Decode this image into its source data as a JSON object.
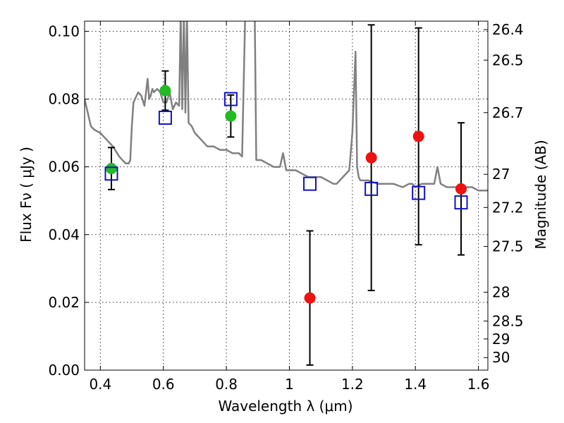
{
  "chart_data": {
    "type": "scatter",
    "title": "",
    "xlabel": "Wavelength  λ (μm)",
    "ylabel": "Flux  Fν  ( μJy )",
    "y2label": "Magnitude (AB)",
    "xlim": [
      0.35,
      1.63
    ],
    "ylim": [
      0.0,
      0.103
    ],
    "grid": true,
    "x_ticks": [
      {
        "value": 0.4,
        "label": "0.4"
      },
      {
        "value": 0.6,
        "label": "0.6"
      },
      {
        "value": 0.8,
        "label": "0.8"
      },
      {
        "value": 1.0,
        "label": "1"
      },
      {
        "value": 1.2,
        "label": "1.2"
      },
      {
        "value": 1.4,
        "label": "1.4"
      },
      {
        "value": 1.6,
        "label": "1.6"
      }
    ],
    "y_ticks": [
      {
        "value": 0.0,
        "label": "0.00"
      },
      {
        "value": 0.02,
        "label": "0.02"
      },
      {
        "value": 0.04,
        "label": "0.04"
      },
      {
        "value": 0.06,
        "label": "0.06"
      },
      {
        "value": 0.08,
        "label": "0.08"
      },
      {
        "value": 0.1,
        "label": "0.10"
      }
    ],
    "y2_ticks": [
      {
        "flux": 0.1005,
        "label": "26.4"
      },
      {
        "flux": 0.0915,
        "label": "26.5"
      },
      {
        "flux": 0.076,
        "label": "26.7"
      },
      {
        "flux": 0.0578,
        "label": "27"
      },
      {
        "flux": 0.048,
        "label": "27.2"
      },
      {
        "flux": 0.0365,
        "label": "27.5"
      },
      {
        "flux": 0.023,
        "label": "28"
      },
      {
        "flux": 0.0145,
        "label": "28.5"
      },
      {
        "flux": 0.0092,
        "label": "29"
      },
      {
        "flux": 0.0037,
        "label": "30"
      }
    ],
    "series": [
      {
        "marker": "circle",
        "color": "#22bb22",
        "points": [
          {
            "x": 0.435,
            "y": 0.0595,
            "err": 0.0062
          },
          {
            "x": 0.606,
            "y": 0.0825,
            "err": 0.0058
          },
          {
            "x": 0.814,
            "y": 0.075,
            "err": 0.0062
          }
        ]
      },
      {
        "marker": "circle",
        "color": "#ee1111",
        "points": [
          {
            "x": 1.065,
            "y": 0.0213,
            "err": 0.0198
          },
          {
            "x": 1.26,
            "y": 0.0627,
            "err": 0.0392
          },
          {
            "x": 1.41,
            "y": 0.069,
            "err": 0.032
          },
          {
            "x": 1.545,
            "y": 0.0535,
            "err": 0.0195
          }
        ]
      },
      {
        "marker": "open-square",
        "color": "#1111cc",
        "points": [
          {
            "x": 0.435,
            "y": 0.058
          },
          {
            "x": 0.606,
            "y": 0.0745
          },
          {
            "x": 0.814,
            "y": 0.08
          },
          {
            "x": 1.065,
            "y": 0.055
          },
          {
            "x": 1.26,
            "y": 0.0535
          },
          {
            "x": 1.41,
            "y": 0.0523
          },
          {
            "x": 1.545,
            "y": 0.0495
          }
        ]
      },
      {
        "line": "spectrum",
        "color": "#808080",
        "x": [
          0.35,
          0.37,
          0.38,
          0.4,
          0.42,
          0.44,
          0.46,
          0.48,
          0.49,
          0.495,
          0.5,
          0.505,
          0.51,
          0.52,
          0.53,
          0.54,
          0.55,
          0.555,
          0.56,
          0.565,
          0.57,
          0.58,
          0.59,
          0.6,
          0.61,
          0.62,
          0.63,
          0.64,
          0.65,
          0.655,
          0.66,
          0.665,
          0.67,
          0.675,
          0.68,
          0.69,
          0.7,
          0.72,
          0.74,
          0.76,
          0.78,
          0.8,
          0.82,
          0.84,
          0.85,
          0.86,
          0.87,
          0.88,
          0.885,
          0.89,
          0.895,
          0.9,
          0.905,
          0.91,
          0.93,
          0.95,
          0.97,
          0.98,
          0.99,
          1.0,
          1.02,
          1.04,
          1.06,
          1.08,
          1.1,
          1.12,
          1.14,
          1.15,
          1.17,
          1.19,
          1.2,
          1.21,
          1.215,
          1.22,
          1.225,
          1.23,
          1.25,
          1.28,
          1.3,
          1.33,
          1.36,
          1.38,
          1.39,
          1.4,
          1.42,
          1.44,
          1.46,
          1.47,
          1.48,
          1.5,
          1.52,
          1.55,
          1.58,
          1.6,
          1.63
        ],
        "y": [
          0.08,
          0.072,
          0.071,
          0.07,
          0.068,
          0.066,
          0.063,
          0.061,
          0.061,
          0.062,
          0.072,
          0.079,
          0.08,
          0.082,
          0.081,
          0.078,
          0.086,
          0.08,
          0.081,
          0.083,
          0.082,
          0.083,
          0.082,
          0.079,
          0.079,
          0.082,
          0.077,
          0.079,
          0.078,
          0.105,
          0.077,
          0.105,
          0.076,
          0.105,
          0.073,
          0.072,
          0.07,
          0.068,
          0.066,
          0.066,
          0.065,
          0.065,
          0.064,
          0.064,
          0.063,
          0.106,
          0.106,
          0.105,
          0.106,
          0.106,
          0.062,
          0.062,
          0.062,
          0.062,
          0.061,
          0.06,
          0.06,
          0.064,
          0.059,
          0.059,
          0.059,
          0.058,
          0.057,
          0.057,
          0.057,
          0.056,
          0.055,
          0.055,
          0.057,
          0.059,
          0.07,
          0.094,
          0.06,
          0.057,
          0.056,
          0.056,
          0.056,
          0.055,
          0.055,
          0.055,
          0.054,
          0.055,
          0.055,
          0.054,
          0.055,
          0.055,
          0.055,
          0.06,
          0.055,
          0.054,
          0.054,
          0.054,
          0.054,
          0.053,
          0.053
        ]
      }
    ]
  }
}
